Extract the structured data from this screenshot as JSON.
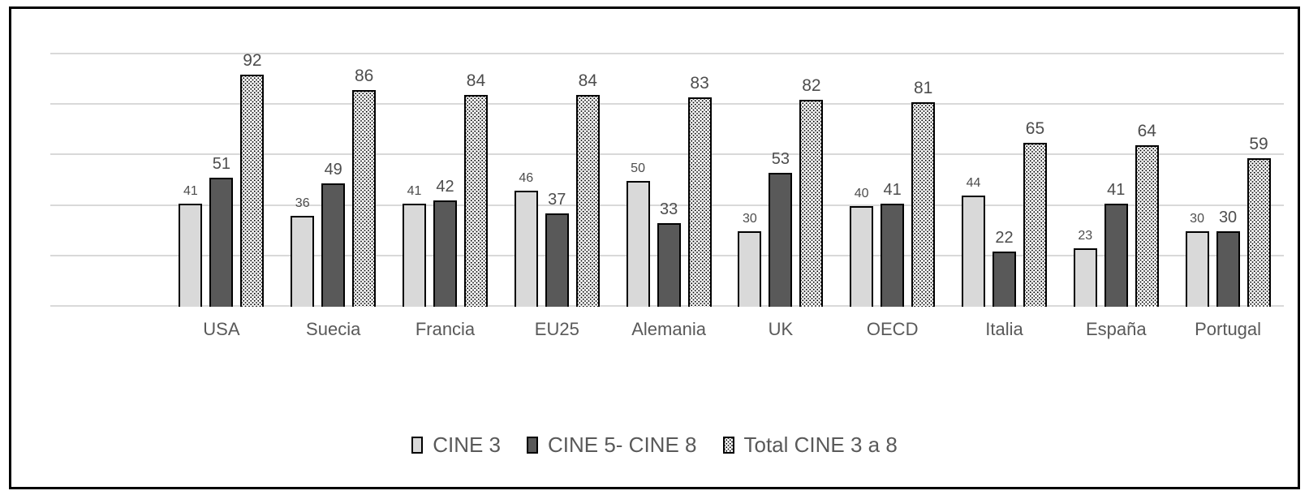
{
  "chart_data": {
    "type": "bar",
    "title": "",
    "xlabel": "",
    "ylabel": "",
    "categories": [
      "USA",
      "Suecia",
      "Francia",
      "EU25",
      "Alemania",
      "UK",
      "OECD",
      "Italia",
      "España",
      "Portugal"
    ],
    "series": [
      {
        "name": "CINE 3",
        "values": [
          41,
          36,
          41,
          46,
          50,
          30,
          40,
          44,
          23,
          30
        ],
        "fill": "#d9d9d9",
        "pattern": "solid"
      },
      {
        "name": "CINE 5- CINE 8",
        "values": [
          51,
          49,
          42,
          37,
          33,
          53,
          41,
          22,
          41,
          30
        ],
        "fill": "#595959",
        "pattern": "solid"
      },
      {
        "name": "Total CINE 3 a 8",
        "values": [
          92,
          86,
          84,
          84,
          83,
          82,
          81,
          65,
          64,
          59
        ],
        "fill": "#ffffff",
        "pattern": "dotted-black"
      }
    ],
    "ylim": [
      0,
      100
    ],
    "gridline_values": [
      0,
      20,
      40,
      60,
      80,
      100
    ],
    "grid": true,
    "y_axis_labels_visible": false,
    "data_labels_visible": true,
    "legend_position": "bottom",
    "colors": {
      "bar_border": "#000000",
      "gridline": "#d9d9d9",
      "data_label": "#4d4d4d",
      "axis_label": "#595959",
      "frame_border": "#000000",
      "background": "#ffffff"
    }
  },
  "legend": {
    "items": [
      {
        "label": "CINE 3"
      },
      {
        "label": "CINE 5- CINE 8"
      },
      {
        "label": "Total CINE 3 a 8"
      }
    ]
  }
}
